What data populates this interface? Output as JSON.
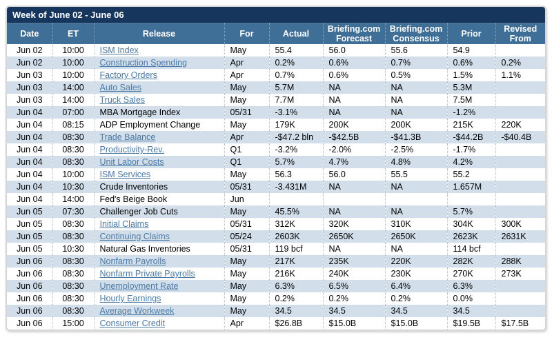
{
  "title": "Week of June 02 - June 06",
  "columns": [
    "Date",
    "ET",
    "Release",
    "For",
    "Actual",
    "Briefing.com Forecast",
    "Briefing.com Consensus",
    "Prior",
    "Revised From"
  ],
  "colors": {
    "title_bar_bg": "#17365d",
    "header_bg": "#3f6e96",
    "stripe_bg": "#d2dfeb",
    "link_color": "#4a79a4"
  },
  "rows": [
    {
      "date": "Jun 02",
      "et": "10:00",
      "release": "ISM Index",
      "link": true,
      "for": "May",
      "actual": "55.4",
      "forecast": "56.0",
      "consensus": "55.6",
      "prior": "54.9",
      "revised": ""
    },
    {
      "date": "Jun 02",
      "et": "10:00",
      "release": "Construction Spending",
      "link": true,
      "for": "Apr",
      "actual": "0.2%",
      "forecast": "0.6%",
      "consensus": "0.7%",
      "prior": "0.6%",
      "revised": "0.2%"
    },
    {
      "date": "Jun 03",
      "et": "10:00",
      "release": "Factory Orders",
      "link": true,
      "for": "Apr",
      "actual": "0.7%",
      "forecast": "0.6%",
      "consensus": "0.5%",
      "prior": "1.5%",
      "revised": "1.1%"
    },
    {
      "date": "Jun 03",
      "et": "14:00",
      "release": "Auto Sales",
      "link": true,
      "for": "May",
      "actual": "5.7M",
      "forecast": "NA",
      "consensus": "NA",
      "prior": "5.3M",
      "revised": ""
    },
    {
      "date": "Jun 03",
      "et": "14:00",
      "release": "Truck Sales",
      "link": true,
      "for": "May",
      "actual": "7.7M",
      "forecast": "NA",
      "consensus": "NA",
      "prior": "7.5M",
      "revised": ""
    },
    {
      "date": "Jun 04",
      "et": "07:00",
      "release": "MBA Mortgage Index",
      "link": false,
      "for": "05/31",
      "actual": "-3.1%",
      "forecast": "NA",
      "consensus": "NA",
      "prior": "-1.2%",
      "revised": ""
    },
    {
      "date": "Jun 04",
      "et": "08:15",
      "release": "ADP Employment Change",
      "link": false,
      "for": "May",
      "actual": "179K",
      "forecast": "200K",
      "consensus": "200K",
      "prior": "215K",
      "revised": "220K"
    },
    {
      "date": "Jun 04",
      "et": "08:30",
      "release": "Trade Balance",
      "link": true,
      "for": "Apr",
      "actual": "-$47.2 bln",
      "forecast": "-$42.5B",
      "consensus": "-$41.3B",
      "prior": "-$44.2B",
      "revised": "-$40.4B"
    },
    {
      "date": "Jun 04",
      "et": "08:30",
      "release": "Productivity-Rev.",
      "link": true,
      "for": "Q1",
      "actual": "-3.2%",
      "forecast": "-2.0%",
      "consensus": "-2.5%",
      "prior": "-1.7%",
      "revised": ""
    },
    {
      "date": "Jun 04",
      "et": "08:30",
      "release": "Unit Labor Costs",
      "link": true,
      "for": "Q1",
      "actual": "5.7%",
      "forecast": "4.7%",
      "consensus": "4.8%",
      "prior": "4.2%",
      "revised": ""
    },
    {
      "date": "Jun 04",
      "et": "10:00",
      "release": "ISM Services",
      "link": true,
      "for": "May",
      "actual": "56.3",
      "forecast": "56.0",
      "consensus": "55.5",
      "prior": "55.2",
      "revised": ""
    },
    {
      "date": "Jun 04",
      "et": "10:30",
      "release": "Crude Inventories",
      "link": false,
      "for": "05/31",
      "actual": "-3.431M",
      "forecast": "NA",
      "consensus": "NA",
      "prior": "1.657M",
      "revised": ""
    },
    {
      "date": "Jun 04",
      "et": "14:00",
      "release": "Fed's Beige Book",
      "link": false,
      "for": "Jun",
      "actual": "",
      "forecast": "",
      "consensus": "",
      "prior": "",
      "revised": ""
    },
    {
      "date": "Jun 05",
      "et": "07:30",
      "release": "Challenger Job Cuts",
      "link": false,
      "for": "May",
      "actual": "45.5%",
      "forecast": "NA",
      "consensus": "NA",
      "prior": "5.7%",
      "revised": ""
    },
    {
      "date": "Jun 05",
      "et": "08:30",
      "release": "Initial Claims",
      "link": true,
      "for": "05/31",
      "actual": "312K",
      "forecast": "320K",
      "consensus": "310K",
      "prior": "304K",
      "revised": "300K"
    },
    {
      "date": "Jun 05",
      "et": "08:30",
      "release": "Continuing Claims",
      "link": true,
      "for": "05/24",
      "actual": "2603K",
      "forecast": "2650K",
      "consensus": "2650K",
      "prior": "2623K",
      "revised": "2631K"
    },
    {
      "date": "Jun 05",
      "et": "10:30",
      "release": "Natural Gas Inventories",
      "link": false,
      "for": "05/31",
      "actual": "119 bcf",
      "forecast": "NA",
      "consensus": "NA",
      "prior": "114 bcf",
      "revised": ""
    },
    {
      "date": "Jun 06",
      "et": "08:30",
      "release": "Nonfarm Payrolls",
      "link": true,
      "for": "May",
      "actual": "217K",
      "forecast": "235K",
      "consensus": "220K",
      "prior": "282K",
      "revised": "288K"
    },
    {
      "date": "Jun 06",
      "et": "08:30",
      "release": "Nonfarm Private Payrolls",
      "link": true,
      "for": "May",
      "actual": "216K",
      "forecast": "240K",
      "consensus": "230K",
      "prior": "270K",
      "revised": "273K"
    },
    {
      "date": "Jun 06",
      "et": "08:30",
      "release": "Unemployment Rate",
      "link": true,
      "for": "May",
      "actual": "6.3%",
      "forecast": "6.5%",
      "consensus": "6.4%",
      "prior": "6.3%",
      "revised": ""
    },
    {
      "date": "Jun 06",
      "et": "08:30",
      "release": "Hourly Earnings",
      "link": true,
      "for": "May",
      "actual": "0.2%",
      "forecast": "0.2%",
      "consensus": "0.2%",
      "prior": "0.0%",
      "revised": ""
    },
    {
      "date": "Jun 06",
      "et": "08:30",
      "release": "Average Workweek",
      "link": true,
      "for": "May",
      "actual": "34.5",
      "forecast": "34.5",
      "consensus": "34.5",
      "prior": "34.5",
      "revised": ""
    },
    {
      "date": "Jun 06",
      "et": "15:00",
      "release": "Consumer Credit",
      "link": true,
      "for": "Apr",
      "actual": "$26.8B",
      "forecast": "$15.0B",
      "consensus": "$15.0B",
      "prior": "$19.5B",
      "revised": "$17.5B"
    }
  ]
}
